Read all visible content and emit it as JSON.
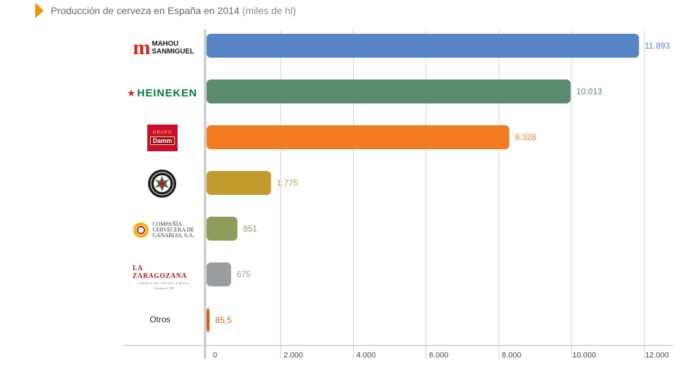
{
  "title": "Producción de cerveza en España en 2014",
  "title_unit": "(miles de hl)",
  "logos": {
    "mahou": {
      "line1": "MAHOU",
      "line2": "SANMIGUEL"
    },
    "heineken": "HEINEKEN",
    "damm": {
      "top": "GRUPO",
      "main": "Damm"
    },
    "cervecera": {
      "line1": "COMPAÑÍA",
      "line2": "CERVECERA DE",
      "line3": "CANARIAS, S.A."
    },
    "zaragozana": {
      "main": "LA ZARAGOZANA",
      "sub": "FÁBRICA DE CERVEZA Y MALTA",
      "script": "Fundada en 1900"
    },
    "otros": "Otros"
  },
  "chart_data": {
    "type": "bar",
    "orientation": "horizontal",
    "categories": [
      "Mahou San Miguel",
      "Heineken",
      "Grupo Damm",
      "Alhambra",
      "Compañía Cervecera de Canarias, S.A.",
      "La Zaragozana",
      "Otros"
    ],
    "values": [
      11893,
      10013,
      8328,
      1775,
      851,
      675,
      85.5
    ],
    "value_labels": [
      "11.893",
      "10.013",
      "8.328",
      "1.775",
      "851",
      "675",
      "85,5"
    ],
    "colors": [
      "#5585c5",
      "#5a8b70",
      "#f37b20",
      "#c29a2e",
      "#8f9c5a",
      "#9b9c9e",
      "#c8651b"
    ],
    "xlim": [
      0,
      12000
    ],
    "xticks": [
      0,
      2000,
      4000,
      6000,
      8000,
      10000,
      12000
    ],
    "xtick_labels": [
      "0",
      "2.000",
      "4.000",
      "6.000",
      "8.000",
      "10.000",
      "12.000"
    ],
    "grid": true,
    "title": "Producción de cerveza en España en 2014",
    "xlabel": "",
    "ylabel": ""
  }
}
